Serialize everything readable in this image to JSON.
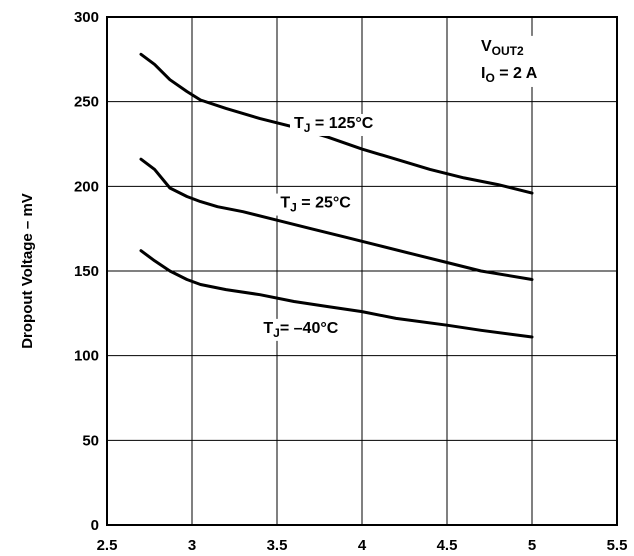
{
  "chart_data": {
    "type": "line",
    "title": "",
    "xlabel": "",
    "ylabel": "Dropout Voltage – mV",
    "xlim": [
      2.5,
      5.5
    ],
    "ylim": [
      0,
      300
    ],
    "x_ticks": [
      "2.5",
      "3",
      "3.5",
      "4",
      "4.5",
      "5",
      "5.5"
    ],
    "y_ticks": [
      "0",
      "50",
      "100",
      "150",
      "200",
      "250",
      "300"
    ],
    "grid": true,
    "condition": {
      "line1_main": "V",
      "line1_sub": "OUT2",
      "line2_main": "I",
      "line2_sub": "O",
      "line2_rest": " = 2 A"
    },
    "series": [
      {
        "label_main": "T",
        "label_sub": "J",
        "label_rest": " = 125°C",
        "label_at": [
          3.6,
          238
        ],
        "points": [
          [
            2.7,
            278
          ],
          [
            2.78,
            272
          ],
          [
            2.87,
            263
          ],
          [
            2.97,
            256
          ],
          [
            3.05,
            251
          ],
          [
            3.2,
            246
          ],
          [
            3.4,
            240
          ],
          [
            3.6,
            235
          ],
          [
            3.8,
            229
          ],
          [
            4.0,
            222
          ],
          [
            4.2,
            216
          ],
          [
            4.4,
            210
          ],
          [
            4.6,
            205
          ],
          [
            4.8,
            201
          ],
          [
            5.0,
            196
          ]
        ]
      },
      {
        "label_main": "T",
        "label_sub": "J",
        "label_rest": " = 25°C",
        "label_at": [
          3.52,
          191
        ],
        "points": [
          [
            2.7,
            216
          ],
          [
            2.78,
            210
          ],
          [
            2.87,
            199
          ],
          [
            2.97,
            194
          ],
          [
            3.05,
            191
          ],
          [
            3.15,
            188
          ],
          [
            3.3,
            185
          ],
          [
            3.5,
            180
          ],
          [
            3.7,
            175
          ],
          [
            3.9,
            170
          ],
          [
            4.1,
            165
          ],
          [
            4.3,
            160
          ],
          [
            4.5,
            155
          ],
          [
            4.7,
            150
          ],
          [
            5.0,
            145
          ]
        ]
      },
      {
        "label_main": "T",
        "label_sub": "J",
        "label_rest": "= –40°C",
        "label_at": [
          3.42,
          117
        ],
        "points": [
          [
            2.7,
            162
          ],
          [
            2.78,
            156
          ],
          [
            2.87,
            150
          ],
          [
            2.97,
            145
          ],
          [
            3.05,
            142
          ],
          [
            3.2,
            139
          ],
          [
            3.4,
            136
          ],
          [
            3.6,
            132
          ],
          [
            3.8,
            129
          ],
          [
            4.0,
            126
          ],
          [
            4.2,
            122
          ],
          [
            4.5,
            118
          ],
          [
            4.7,
            115
          ],
          [
            5.0,
            111
          ]
        ]
      }
    ]
  }
}
